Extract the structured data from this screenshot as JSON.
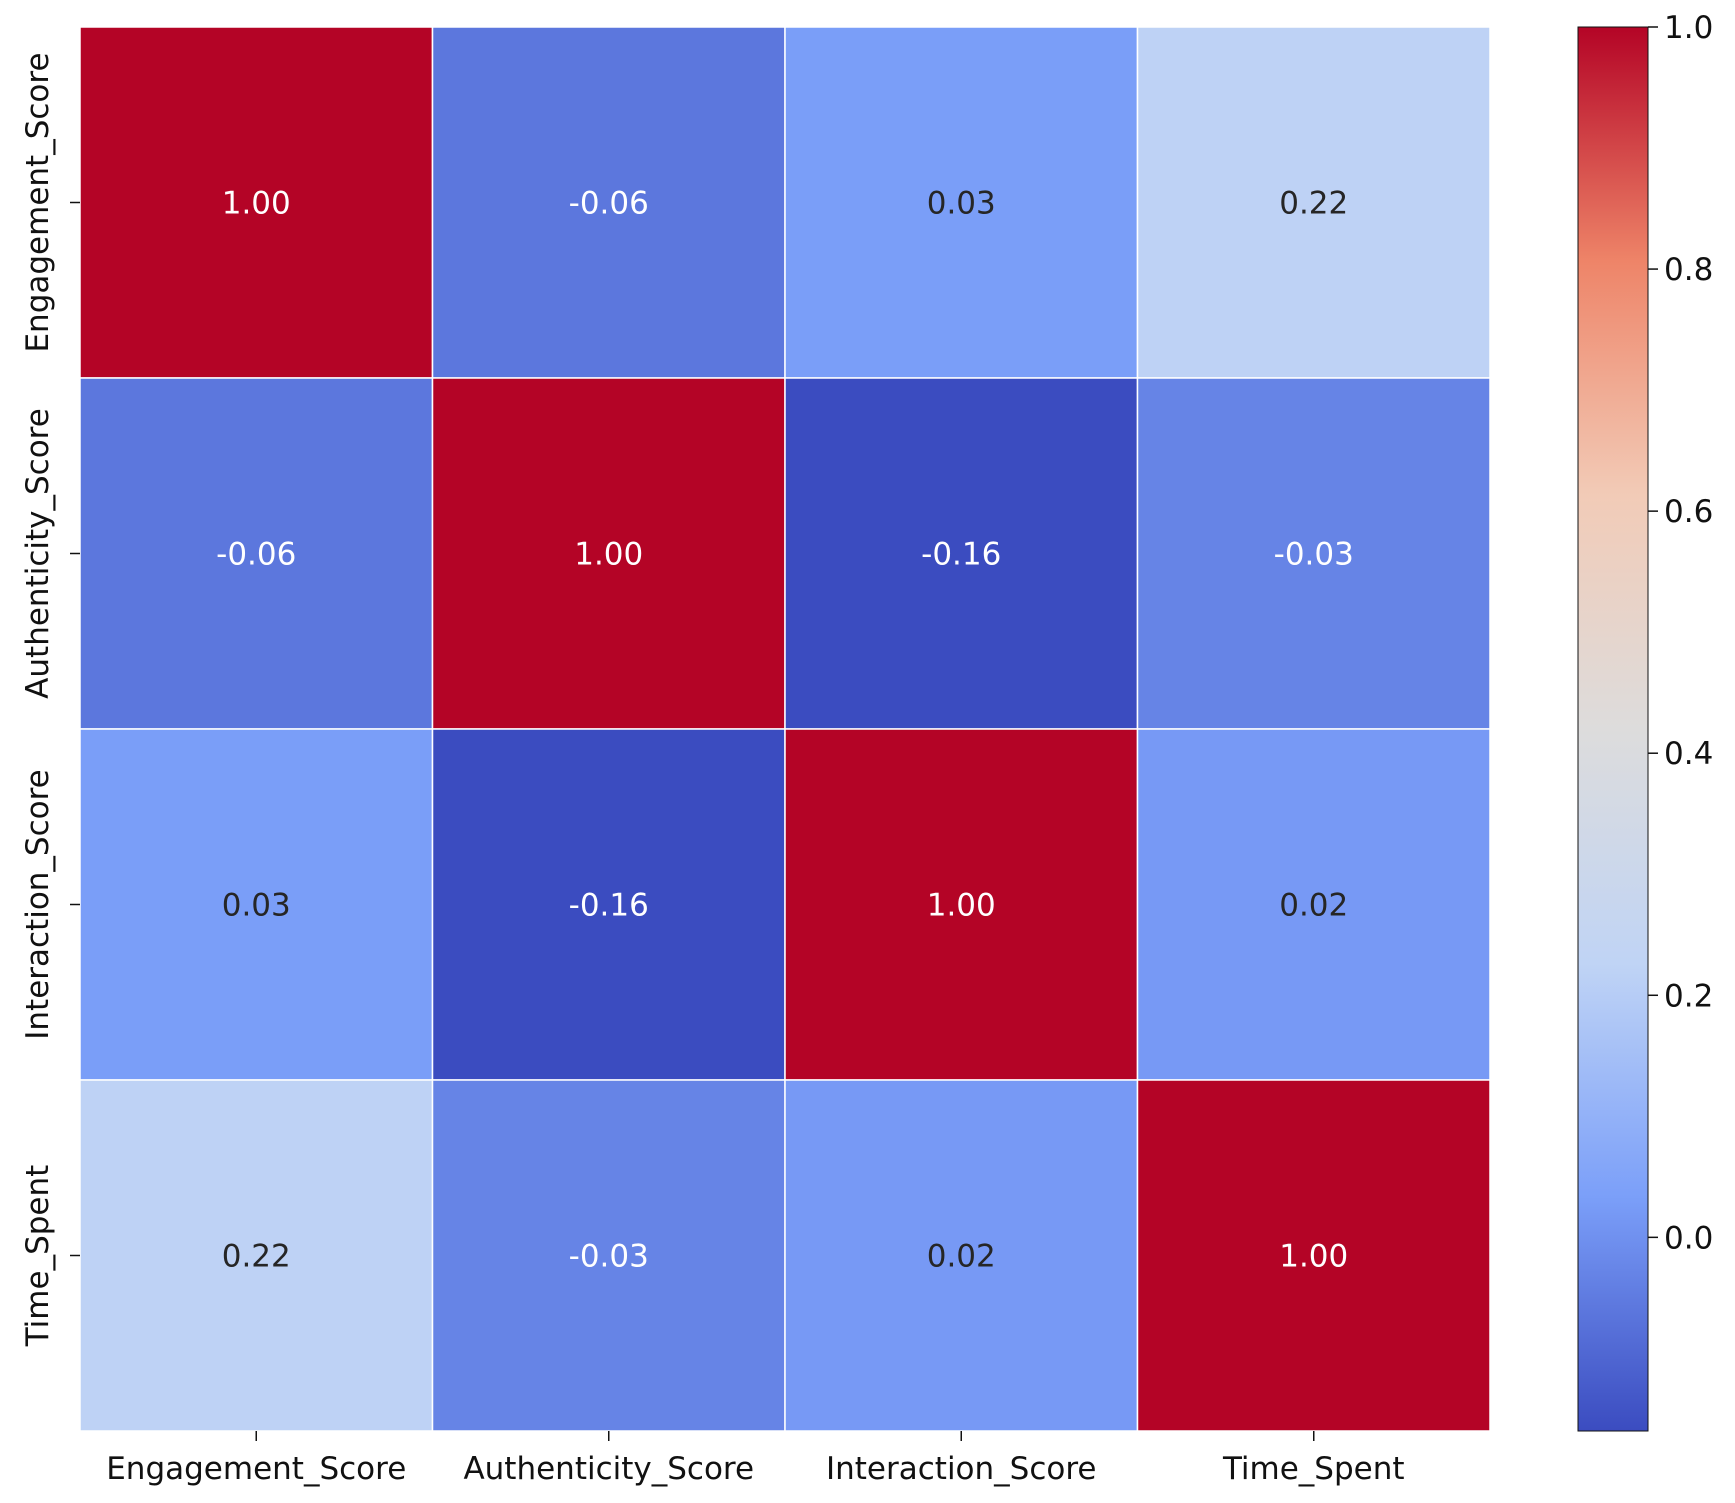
{
  "chart_data": {
    "type": "heatmap",
    "row_labels": [
      "Engagement_Score",
      "Authenticity_Score",
      "Interaction_Score",
      "Time_Spent"
    ],
    "col_labels": [
      "Engagement_Score",
      "Authenticity_Score",
      "Interaction_Score",
      "Time_Spent"
    ],
    "values": [
      [
        1.0,
        -0.06,
        0.03,
        0.22
      ],
      [
        -0.06,
        1.0,
        -0.16,
        -0.03
      ],
      [
        0.03,
        -0.16,
        1.0,
        0.02
      ],
      [
        0.22,
        -0.03,
        0.02,
        1.0
      ]
    ],
    "value_format": "0.00",
    "colormap": "coolwarm",
    "colorbar": {
      "range": [
        -0.16,
        1.0
      ],
      "ticks": [
        0.0,
        0.2,
        0.4,
        0.6,
        0.8,
        1.0
      ],
      "tick_labels": [
        "0.0",
        "0.2",
        "0.4",
        "0.6",
        "0.8",
        "1.0"
      ]
    },
    "colors": {
      "coolwarm_stops": [
        "#3b4cc0",
        "#7b9ff9",
        "#c0d4f5",
        "#dddcdc",
        "#f2cbb7",
        "#ee8468",
        "#b40426"
      ],
      "cell_border": "#ffffff",
      "light_text": "#ffffff",
      "dark_text": "#262626"
    },
    "grid": false
  }
}
